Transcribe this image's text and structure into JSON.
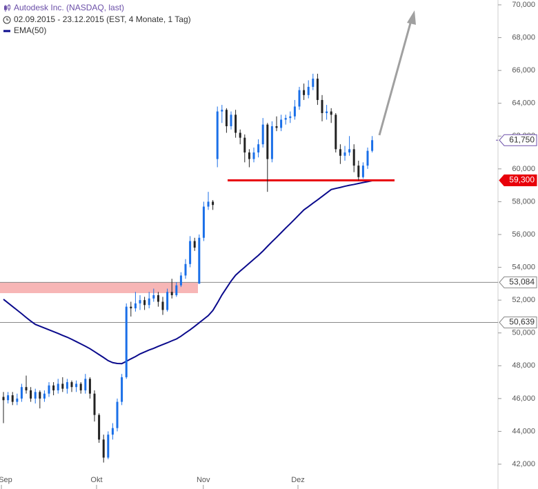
{
  "chart_data": {
    "type": "candlestick",
    "title": "Autodesk Inc. (NASDAQ, last)",
    "subtitle": "02.09.2015 - 23.12.2015 (EST, 4 Monate, 1 Tag)",
    "up_color": "#1a6fe8",
    "down_color": "#222222",
    "xlim": [
      -0.76,
      108.64
    ],
    "xticks": [
      {
        "value": -0.45,
        "label": "Sep"
      },
      {
        "value": 20.45,
        "label": "Okt"
      },
      {
        "value": 43.9,
        "label": "Nov"
      },
      {
        "value": 64.7,
        "label": "Dez"
      }
    ],
    "ylim": [
      42000,
      70000
    ],
    "yticks": [
      {
        "value": 42000,
        "label": "42,000"
      },
      {
        "value": 44000,
        "label": "44,000"
      },
      {
        "value": 46000,
        "label": "46,000"
      },
      {
        "value": 48000,
        "label": "48,000"
      },
      {
        "value": 50000,
        "label": "50,000"
      },
      {
        "value": 52000,
        "label": "52,000"
      },
      {
        "value": 54000,
        "label": "54,000"
      },
      {
        "value": 56000,
        "label": "56,000"
      },
      {
        "value": 58000,
        "label": "58,000"
      },
      {
        "value": 60000,
        "label": "60,000"
      },
      {
        "value": 62000,
        "label": "62,000"
      },
      {
        "value": 64000,
        "label": "64,000"
      },
      {
        "value": 66000,
        "label": "66,000"
      },
      {
        "value": 68000,
        "label": "68,000"
      },
      {
        "value": 70000,
        "label": "70,000"
      }
    ],
    "x": [
      0,
      1,
      2,
      3,
      4,
      5,
      6,
      7,
      8,
      9,
      10,
      11,
      12,
      13,
      14,
      15,
      16,
      17,
      18,
      19,
      20,
      21,
      22,
      23,
      24,
      25,
      26,
      27,
      28,
      29,
      30,
      31,
      32,
      33,
      34,
      35,
      36,
      37,
      38,
      39,
      40,
      41,
      42,
      43,
      44,
      45,
      46,
      47,
      48,
      49,
      50,
      51,
      52,
      53,
      54,
      55,
      56,
      57,
      58,
      59,
      60,
      61,
      62,
      63,
      64,
      65,
      66,
      67,
      68,
      69,
      70,
      71,
      72,
      73,
      74,
      75,
      76,
      77,
      78,
      79,
      80,
      81
    ],
    "open": [
      46100,
      45900,
      46200,
      45800,
      46000,
      46700,
      46500,
      46000,
      46400,
      46000,
      46300,
      46800,
      46500,
      46900,
      46600,
      47000,
      46700,
      46900,
      46500,
      47200,
      46300,
      45000,
      43500,
      42400,
      43800,
      44200,
      45800,
      47300,
      51600,
      51500,
      51800,
      52000,
      51700,
      52100,
      52300,
      51900,
      51400,
      52500,
      52300,
      52900,
      53500,
      54200,
      55600,
      53000,
      55800,
      57700,
      58000,
      60600,
      63500,
      63600,
      62600,
      63300,
      62200,
      61900,
      61000,
      60600,
      61000,
      61500,
      62700,
      60600,
      62600,
      62500,
      63000,
      63100,
      63200,
      63800,
      64800,
      64500,
      65000,
      65500,
      64200,
      63400,
      63500,
      63300,
      61200,
      60800,
      61000,
      61200,
      60200,
      59500,
      60200,
      61100
    ],
    "high": [
      46400,
      46400,
      46400,
      46300,
      46900,
      47400,
      46700,
      46600,
      46500,
      46500,
      47000,
      47000,
      47200,
      47300,
      47200,
      47100,
      47100,
      47000,
      47500,
      47300,
      46500,
      45100,
      43800,
      44000,
      44500,
      46000,
      47500,
      51800,
      51900,
      52500,
      52300,
      52200,
      52500,
      52700,
      52500,
      52200,
      52700,
      53300,
      53100,
      53700,
      54500,
      55900,
      55800,
      56000,
      58000,
      58600,
      58100,
      63800,
      63900,
      63700,
      63500,
      63600,
      62400,
      62100,
      61200,
      61300,
      61800,
      63100,
      62800,
      62900,
      63200,
      63300,
      63300,
      63500,
      64200,
      65000,
      65200,
      65400,
      65800,
      65800,
      64500,
      63900,
      63700,
      63400,
      61500,
      61400,
      62000,
      61500,
      60500,
      60400,
      61300,
      62000
    ],
    "low": [
      44500,
      45700,
      45600,
      45600,
      45800,
      46300,
      45800,
      45700,
      45400,
      45800,
      46100,
      46200,
      46300,
      46400,
      46300,
      46400,
      46400,
      46300,
      46300,
      46000,
      44600,
      43300,
      42100,
      42300,
      43500,
      44000,
      45600,
      47200,
      51000,
      51300,
      51400,
      51400,
      51500,
      51900,
      51600,
      51100,
      51300,
      52100,
      52200,
      52800,
      53300,
      54000,
      55000,
      53000,
      55600,
      57500,
      57500,
      60100,
      62800,
      62200,
      62400,
      61900,
      61500,
      60400,
      60100,
      60400,
      60700,
      61300,
      58600,
      60400,
      62300,
      62300,
      62700,
      62800,
      63000,
      63600,
      64200,
      64300,
      64800,
      63900,
      62900,
      63000,
      62800,
      61000,
      60300,
      60500,
      60800,
      59800,
      59300,
      59400,
      60000,
      61000
    ],
    "close": [
      45900,
      46200,
      45800,
      46000,
      46700,
      46500,
      46000,
      46400,
      46000,
      46300,
      46800,
      46500,
      46900,
      46600,
      47000,
      46700,
      46900,
      46500,
      47200,
      46300,
      45000,
      43500,
      42400,
      43800,
      44200,
      45800,
      47300,
      51600,
      51500,
      51800,
      52000,
      51700,
      52100,
      52300,
      51900,
      51400,
      52500,
      52300,
      52900,
      53500,
      54200,
      55600,
      55200,
      55800,
      57700,
      58000,
      57800,
      63500,
      63600,
      62600,
      63300,
      62200,
      61900,
      61000,
      60600,
      61000,
      61500,
      62700,
      60600,
      62600,
      62500,
      63000,
      63100,
      63200,
      63800,
      64800,
      64500,
      65000,
      65500,
      64200,
      63400,
      63500,
      63300,
      61200,
      60800,
      61000,
      61200,
      60200,
      59500,
      60200,
      61100,
      61750
    ],
    "series": [
      {
        "name": "EMA(50)",
        "color": "#0a0a8c",
        "values": [
          52050,
          51830,
          51610,
          51390,
          51170,
          50940,
          50720,
          50520,
          50410,
          50300,
          50190,
          50080,
          49970,
          49850,
          49740,
          49610,
          49470,
          49330,
          49190,
          49040,
          48860,
          48680,
          48500,
          48310,
          48190,
          48140,
          48130,
          48270,
          48420,
          48560,
          48720,
          48840,
          48960,
          49060,
          49180,
          49290,
          49400,
          49520,
          49630,
          49800,
          50000,
          50190,
          50400,
          50620,
          50840,
          51060,
          51370,
          51830,
          52320,
          52740,
          53160,
          53520,
          53770,
          54010,
          54250,
          54490,
          54730,
          54990,
          55280,
          55560,
          55830,
          56110,
          56390,
          56660,
          56940,
          57220,
          57500,
          57700,
          57910,
          58110,
          58320,
          58530,
          58740,
          58810,
          58870,
          58940,
          59000,
          59050,
          59110,
          59170,
          59220,
          59280
        ]
      }
    ],
    "hlines": [
      {
        "value": 53084,
        "label": "53,084"
      },
      {
        "value": 50639,
        "label": "50,639"
      }
    ],
    "support": {
      "value": 59300,
      "label": "59,300",
      "color": "#e8000a"
    },
    "last_price": {
      "value": 61750,
      "label": "61,750",
      "color": "#6b4fa8"
    }
  }
}
